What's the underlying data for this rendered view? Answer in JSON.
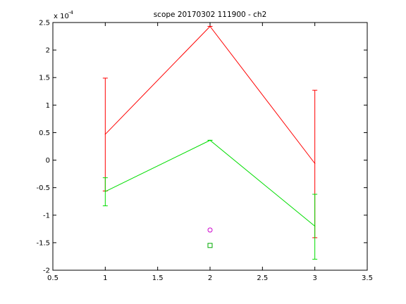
{
  "chart_data": {
    "type": "line",
    "title": "scope 20170302 111900 - ch2",
    "xlabel": "",
    "ylabel": "",
    "xlim": [
      0.5,
      3.5
    ],
    "ylim": [
      -2,
      2.5
    ],
    "y_scale_label": "x 10^-4",
    "y_scale_base": "x 10",
    "y_scale_exp": "-4",
    "x_ticks": [
      "0.5",
      "1",
      "1.5",
      "2",
      "2.5",
      "3",
      "3.5"
    ],
    "y_ticks": [
      "-2",
      "-1.5",
      "-1",
      "-0.5",
      "0",
      "0.5",
      "1",
      "1.5",
      "2",
      "2.5"
    ],
    "grid": false,
    "legend": "none",
    "series": [
      {
        "color": "#ff0000",
        "x": [
          1,
          2,
          3
        ],
        "y": [
          0.47,
          2.43,
          -0.06
        ],
        "error_low": [
          1.03,
          0.0,
          1.35
        ],
        "error_high": [
          1.02,
          0.0,
          1.33
        ]
      },
      {
        "color": "#00dd00",
        "x": [
          1,
          2,
          3
        ],
        "y": [
          -0.57,
          0.36,
          -1.2
        ],
        "error_low": [
          0.26,
          0.0,
          0.6
        ],
        "error_high": [
          0.25,
          0.0,
          0.58
        ]
      }
    ],
    "markers": [
      {
        "shape": "circle",
        "color": "#cc00cc",
        "x": 2,
        "y": -1.27
      },
      {
        "shape": "square",
        "color": "#00aa00",
        "x": 2,
        "y": -1.55
      }
    ]
  }
}
